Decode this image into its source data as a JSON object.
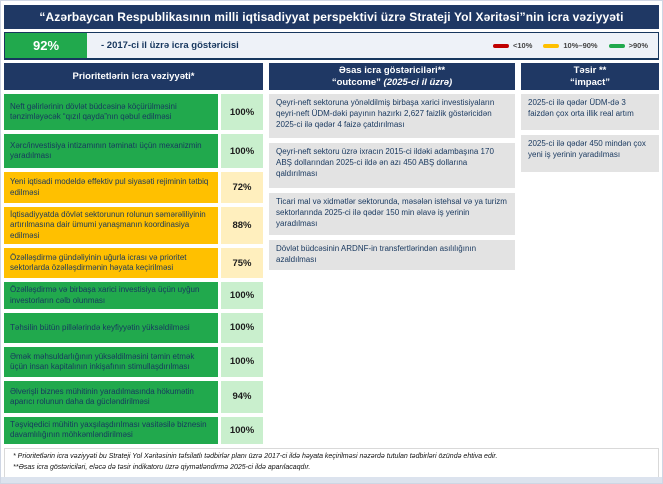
{
  "title": "“Azərbaycan Respublikasının milli iqtisadiyyat perspektivi üzrə Strateji Yol Xəritəsi”nin icra vəziyyəti",
  "summary": {
    "value": "92%",
    "label": "- 2017-ci il üzrə icra göstəricisi",
    "badge_color": "#21a94d"
  },
  "legend": {
    "items": [
      {
        "label": "<10%",
        "color": "#c00000"
      },
      {
        "label": "10%–90%",
        "color": "#ffc000"
      },
      {
        "label": ">90%",
        "color": "#21a94d"
      }
    ]
  },
  "priorities": {
    "header": "Prioritetlərin icra vəziyyəti*",
    "rows": [
      {
        "text": "Neft gəlirlərinin dövlət büdcəsinə köçürülməsini tənzimləyəcək “qızıl qayda”nın qəbul edilməsi",
        "value": "100%",
        "status": "green"
      },
      {
        "text": "Xərc/investisiya intizamının təminatı üçün mexanizmin yaradılması",
        "value": "100%",
        "status": "green"
      },
      {
        "text": "Yeni iqtisadi modeldə effektiv pul siyasəti rejiminin tətbiq edilməsi",
        "value": "72%",
        "status": "yellow"
      },
      {
        "text": "İqtisadiyyatda dövlət sektorunun rolunun səmərəliliyinin artırılmasına dair ümumi yanaşmanın koordinasiya edilməsi",
        "value": "88%",
        "status": "yellow"
      },
      {
        "text": "Özəlləşdirmə gündəliyinin uğurla icrası və prioritet sektorlarda özəlləşdirmənin həyata keçirilməsi",
        "value": "75%",
        "status": "yellow"
      },
      {
        "text": "Özəlləşdirmə və birbaşa xarici investisiya üçün uyğun investorların cəlb olunması",
        "value": "100%",
        "status": "green"
      },
      {
        "text": "Təhsilin bütün pillələrində keyfiyyətin yüksəldilməsi",
        "value": "100%",
        "status": "green"
      },
      {
        "text": "Əmək məhsuldarlığının yüksəldilməsini təmin etmək üçün insan kapitalının inkişafının stimullaşdırılması",
        "value": "100%",
        "status": "green"
      },
      {
        "text": "Əlverişli biznes mühitinin yaradılmasında hökumətin aparıcı rolunun daha da gücləndirilməsi",
        "value": "94%",
        "status": "green"
      },
      {
        "text": "Təşviqedici mühitin yaxşılaşdırılması vasitəsilə biznesin davamlılığının möhkəmləndirilməsi",
        "value": "100%",
        "status": "green"
      }
    ]
  },
  "outcome": {
    "header_line1": "Əsas icra göstəriciləri**",
    "header_line2_quoted": "“outcome”",
    "header_line2_italic": " (2025-ci il üzrə)",
    "items": [
      {
        "text": "Qeyri-neft sektoruna yönəldilmiş birbaşa xarici investisiyaların qeyri-neft ÜDM-dəki payının hazırkı 2,627 faizlik göstəricidən 2025-ci ilə qədər 4 faizə çatdırılması"
      },
      {
        "text": "Qeyri-neft sektoru üzrə ixracın 2015-ci ildəki adambaşına 170 ABŞ dollarından 2025-ci ildə ən azı 450 ABŞ dollarına qaldırılması"
      },
      {
        "text": "Ticari mal və xidmətlər sektorunda, məsələn istehsal və ya turizm sektorlarında 2025-ci ilə qədər 150 min əlavə iş yerinin yaradılması"
      },
      {
        "text": "Dövlət büdcəsinin ARDNF-in transfertlərindən asılılığının azaldılması"
      }
    ]
  },
  "impact": {
    "header_line1": "Təsir **",
    "header_line2": "“impact”",
    "items": [
      {
        "text": "2025-ci ilə qədər ÜDM-də 3 faizdən çox orta illik real artım"
      },
      {
        "text": "2025-ci ilə qədər 450 mindən çox yeni iş yerinin yaradılması"
      }
    ]
  },
  "footnotes": {
    "line1": "* Prioritetlərin icra vəziyyəti bu Strateji Yol Xəritəsinin təfsilatlı tədbirlər planı üzrə 2017-ci ildə həyata keçirilməsi nəzərdə tutulan tədbirləri özündə ehtiva edir.",
    "line2": "**Əsas icra göstəriciləri, eləcə də təsir indikatoru üzrə qiymətləndirmə 2025-ci ildə aparılacaqdır."
  }
}
